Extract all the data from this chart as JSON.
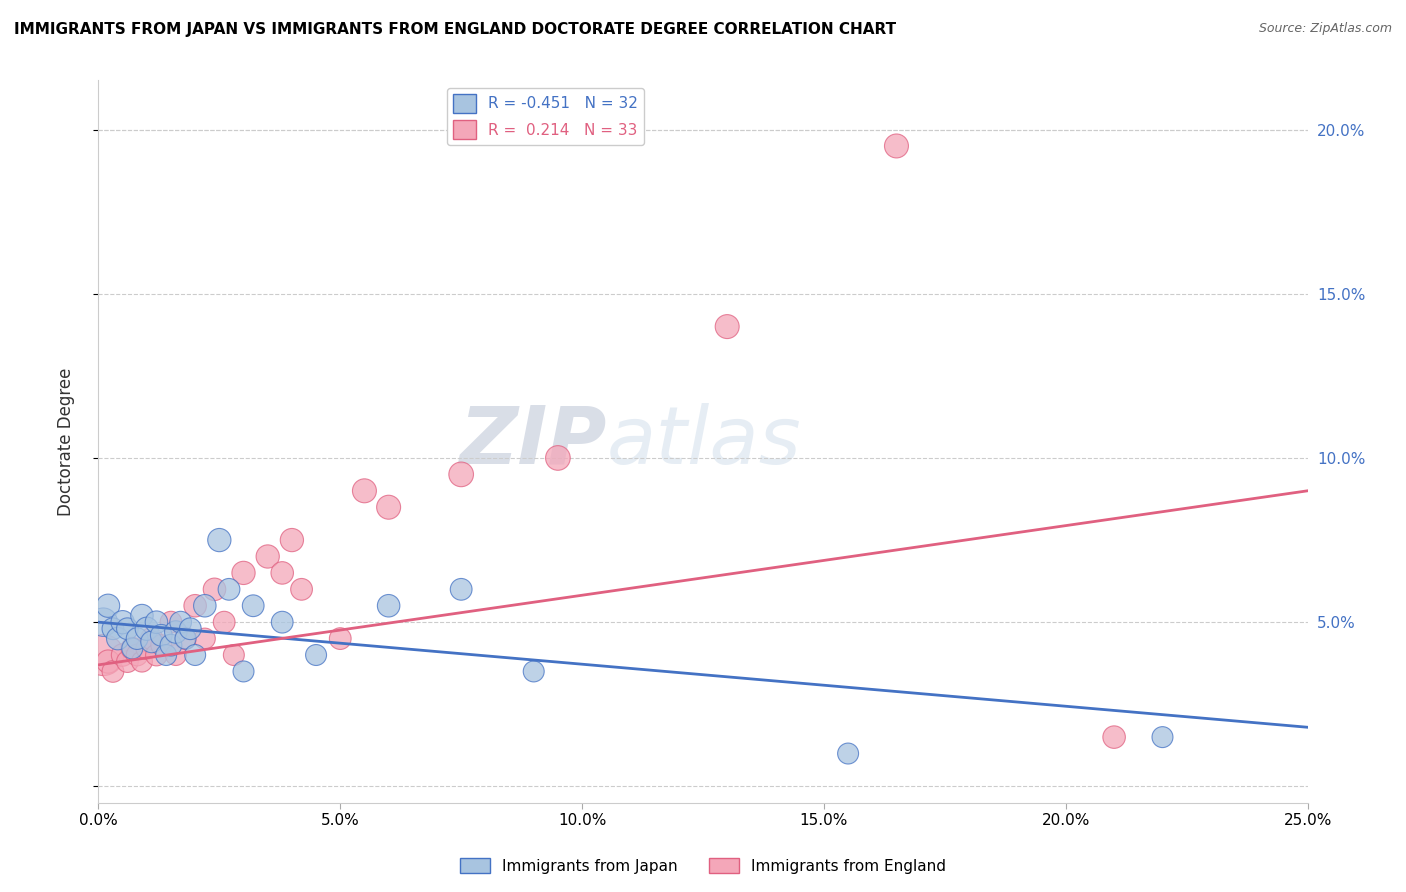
{
  "title": "IMMIGRANTS FROM JAPAN VS IMMIGRANTS FROM ENGLAND DOCTORATE DEGREE CORRELATION CHART",
  "source": "Source: ZipAtlas.com",
  "ylabel_label": "Doctorate Degree",
  "x_ticks": [
    0.0,
    0.05,
    0.1,
    0.15,
    0.2,
    0.25
  ],
  "x_tick_labels": [
    "0.0%",
    "5.0%",
    "10.0%",
    "15.0%",
    "20.0%",
    "25.0%"
  ],
  "y_ticks": [
    0.0,
    0.05,
    0.1,
    0.15,
    0.2
  ],
  "y_tick_labels": [
    "",
    "5.0%",
    "10.0%",
    "15.0%",
    "20.0%"
  ],
  "xlim": [
    0.0,
    0.25
  ],
  "ylim": [
    -0.005,
    0.215
  ],
  "japan_color": "#a8c4e0",
  "england_color": "#f4a7b9",
  "japan_line_color": "#4472c4",
  "england_line_color": "#e06080",
  "japan_R": -0.451,
  "japan_N": 32,
  "england_R": 0.214,
  "england_N": 33,
  "right_axis_color": "#4472c4",
  "watermark_zip": "ZIP",
  "watermark_atlas": "atlas",
  "japan_x": [
    0.001,
    0.002,
    0.003,
    0.004,
    0.005,
    0.006,
    0.007,
    0.008,
    0.009,
    0.01,
    0.011,
    0.012,
    0.013,
    0.014,
    0.015,
    0.016,
    0.017,
    0.018,
    0.019,
    0.02,
    0.022,
    0.025,
    0.027,
    0.03,
    0.032,
    0.038,
    0.045,
    0.06,
    0.075,
    0.09,
    0.155,
    0.22
  ],
  "japan_y": [
    0.05,
    0.055,
    0.048,
    0.045,
    0.05,
    0.048,
    0.042,
    0.045,
    0.052,
    0.048,
    0.044,
    0.05,
    0.046,
    0.04,
    0.043,
    0.047,
    0.05,
    0.045,
    0.048,
    0.04,
    0.055,
    0.075,
    0.06,
    0.035,
    0.055,
    0.05,
    0.04,
    0.055,
    0.06,
    0.035,
    0.01,
    0.015
  ],
  "japan_size": [
    120,
    80,
    70,
    75,
    80,
    70,
    65,
    70,
    75,
    80,
    70,
    75,
    70,
    65,
    70,
    75,
    70,
    65,
    70,
    65,
    75,
    80,
    70,
    65,
    70,
    70,
    65,
    75,
    70,
    65,
    65,
    65
  ],
  "england_x": [
    0.001,
    0.002,
    0.003,
    0.005,
    0.006,
    0.007,
    0.008,
    0.009,
    0.01,
    0.011,
    0.012,
    0.013,
    0.015,
    0.016,
    0.018,
    0.02,
    0.022,
    0.024,
    0.026,
    0.028,
    0.03,
    0.035,
    0.038,
    0.04,
    0.042,
    0.05,
    0.055,
    0.06,
    0.075,
    0.095,
    0.13,
    0.165,
    0.21
  ],
  "england_y": [
    0.04,
    0.038,
    0.035,
    0.04,
    0.038,
    0.042,
    0.04,
    0.038,
    0.042,
    0.045,
    0.04,
    0.043,
    0.05,
    0.04,
    0.045,
    0.055,
    0.045,
    0.06,
    0.05,
    0.04,
    0.065,
    0.07,
    0.065,
    0.075,
    0.06,
    0.045,
    0.09,
    0.085,
    0.095,
    0.1,
    0.14,
    0.195,
    0.015
  ],
  "england_size": [
    250,
    80,
    70,
    75,
    70,
    75,
    70,
    65,
    70,
    75,
    70,
    65,
    70,
    65,
    70,
    75,
    65,
    75,
    70,
    65,
    80,
    80,
    75,
    80,
    70,
    70,
    85,
    85,
    90,
    90,
    85,
    85,
    75
  ]
}
